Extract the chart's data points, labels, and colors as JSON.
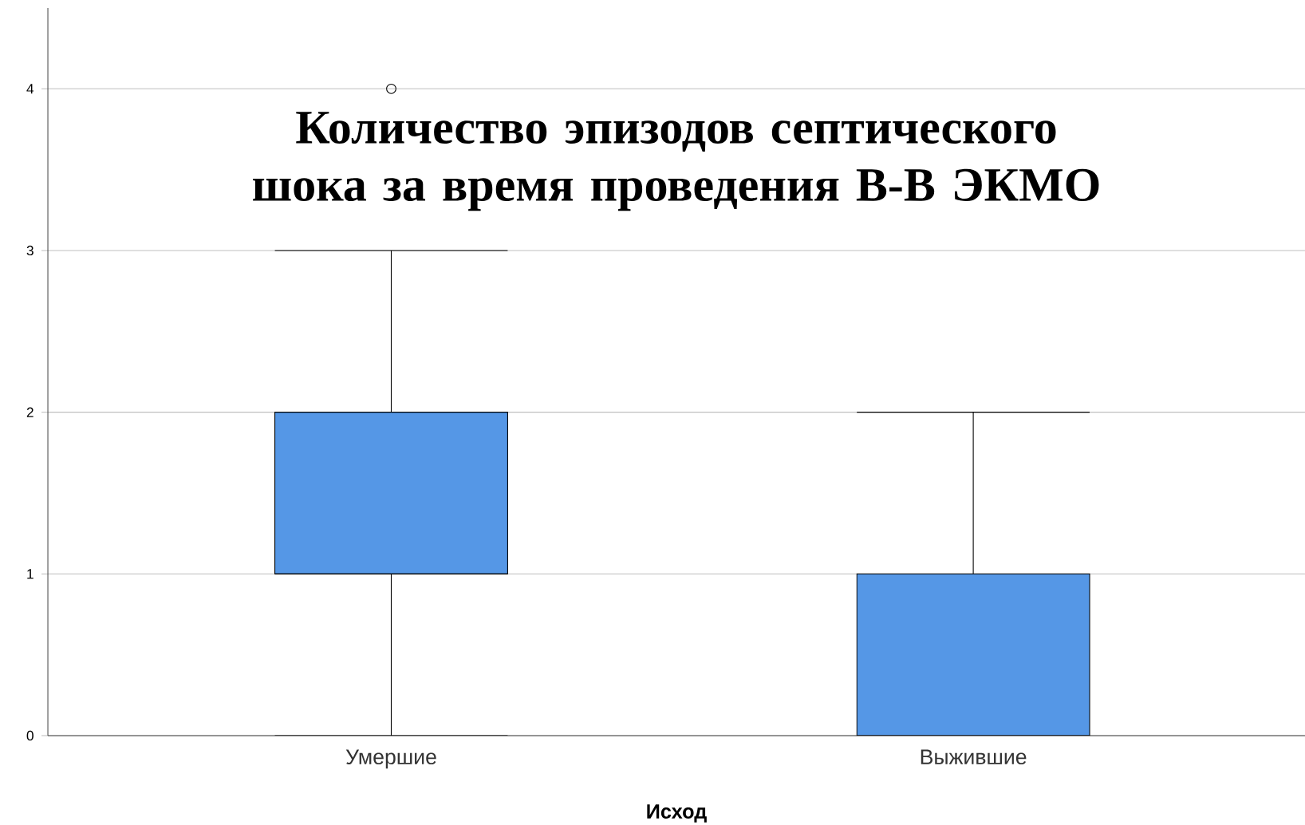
{
  "chart_data": {
    "type": "box",
    "title": "Количество эпизодов септического шока за время проведения В-В ЭКМО",
    "xlabel": "Исход",
    "categories": [
      "Умершие",
      "Выжившие"
    ],
    "boxes": [
      {
        "low": 0,
        "q1": 1,
        "median": 1,
        "q3": 2,
        "high": 3,
        "outliers": [
          4
        ]
      },
      {
        "low": 0,
        "q1": 0,
        "median": 0,
        "q3": 1,
        "high": 2
      }
    ],
    "color": "#5597e6",
    "ylim": [
      0,
      4.5
    ],
    "yticks": [
      0,
      1,
      2,
      3,
      4
    ],
    "grid": "y"
  }
}
